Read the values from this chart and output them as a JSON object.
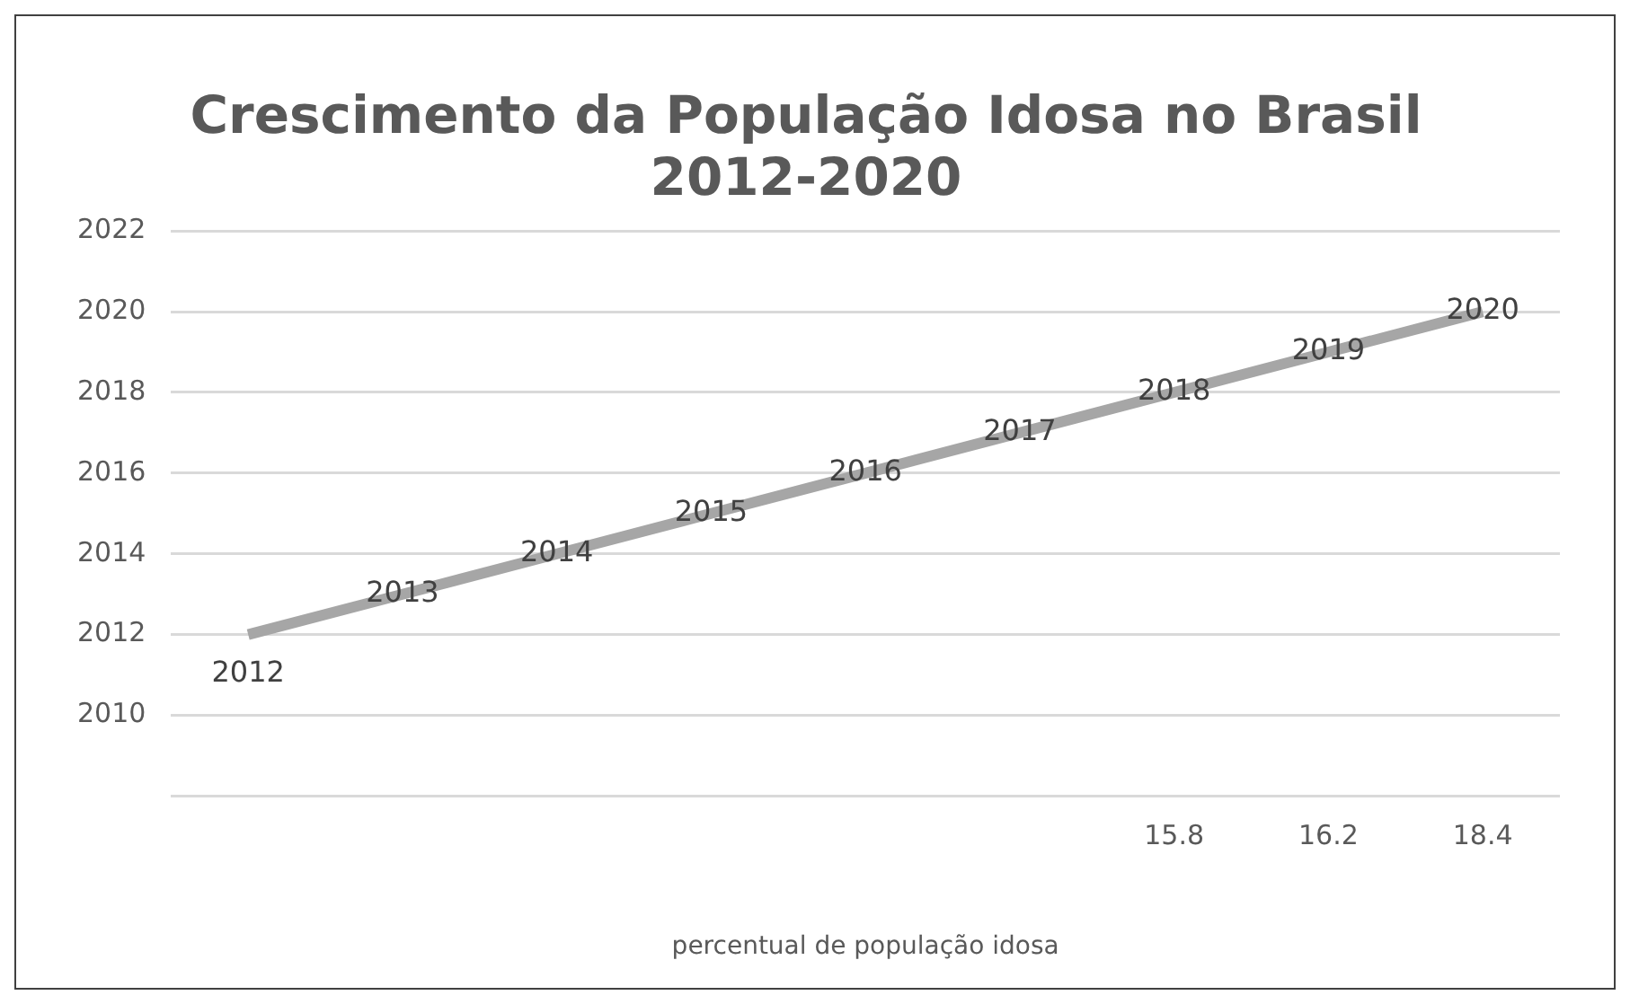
{
  "chart_data": {
    "type": "line",
    "title": "Crescimento da População Idosa no Brasil\n2012-2020",
    "xlabel": "percentual de população idosa",
    "categories": [
      null,
      null,
      null,
      null,
      null,
      null,
      "15.8",
      "16.2",
      "18.4"
    ],
    "series": [
      {
        "color": "#a6a6a6",
        "values": [
          2012,
          2013,
          2014,
          2015,
          2016,
          2017,
          2018,
          2019,
          2020
        ]
      }
    ],
    "ylim": [
      2008,
      2022
    ],
    "yticks": [
      {
        "value": 2008,
        "label": null
      },
      2010,
      2012,
      2014,
      2016,
      2018,
      2020,
      2022
    ],
    "grid": "y",
    "legend": false,
    "marker": "none",
    "line_style": "solid",
    "data_labels": true
  }
}
